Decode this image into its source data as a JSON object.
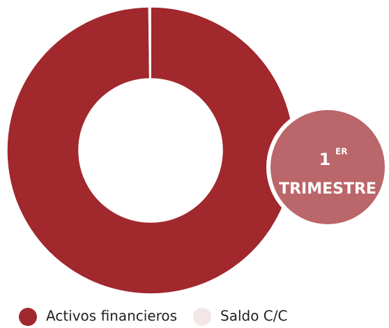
{
  "chart_data": {
    "type": "donut",
    "categories": [
      "Activos financieros",
      "Saldo C/C"
    ],
    "values": [
      99.8,
      0.2
    ],
    "colors": [
      "#a1282d",
      "#f2e6e6"
    ],
    "annotation": {
      "number": "1",
      "superscript": "ER",
      "label": "TRIMESTRE",
      "color": "#bb666a"
    }
  }
}
